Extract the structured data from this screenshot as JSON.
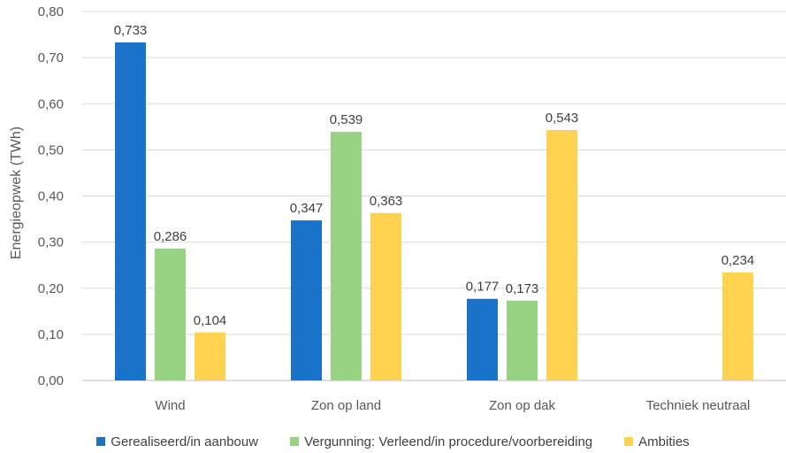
{
  "chart_data": {
    "type": "bar",
    "title": "",
    "xlabel": "",
    "ylabel": "Energieopwek (TWh)",
    "ylim": [
      0,
      0.8
    ],
    "yticks": [
      "0,00",
      "0,10",
      "0,20",
      "0,30",
      "0,40",
      "0,50",
      "0,60",
      "0,70",
      "0,80"
    ],
    "categories": [
      "Wind",
      "Zon op land",
      "Zon op dak",
      "Techniek neutraal"
    ],
    "grid": true,
    "legend_position": "bottom",
    "series": [
      {
        "name": "Gerealiseerd/in aanbouw",
        "color": "#1a73c9",
        "values": [
          0.733,
          0.347,
          0.177,
          null
        ],
        "labels": [
          "0,733",
          "0,347",
          "0,177",
          ""
        ]
      },
      {
        "name": "Vergunning: Verleend/in procedure/voorbereiding",
        "color": "#98d283",
        "values": [
          0.286,
          0.539,
          0.173,
          null
        ],
        "labels": [
          "0,286",
          "0,539",
          "0,173",
          ""
        ]
      },
      {
        "name": "Ambities",
        "color": "#ffd34f",
        "values": [
          0.104,
          0.363,
          0.543,
          0.234
        ],
        "labels": [
          "0,104",
          "0,363",
          "0,543",
          "0,234"
        ]
      }
    ]
  }
}
